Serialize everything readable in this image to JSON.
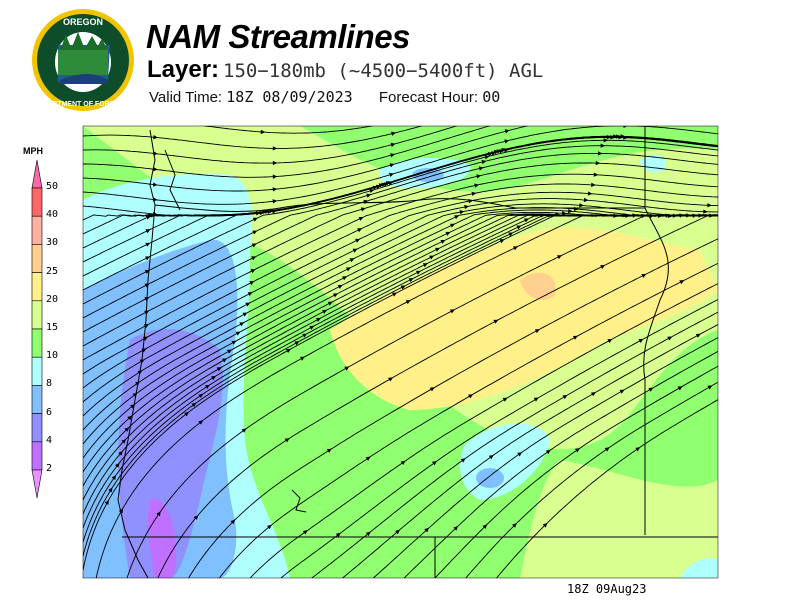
{
  "header": {
    "title": "NAM Streamlines",
    "layer_label": "Layer:",
    "layer_value": "150−180mb (~4500−5400ft) AGL",
    "valid_label": "Valid Time:",
    "valid_value": "18Z 08/09/2023",
    "forecast_label": "Forecast Hour:",
    "forecast_value": "00"
  },
  "logo": {
    "text": "OREGON DEPARTMENT OF FORESTRY",
    "colors": {
      "ring": "#f2c400",
      "field": "#0d4d2a"
    }
  },
  "legend": {
    "unit": "MPH",
    "ticks": [
      "50",
      "40",
      "30",
      "25",
      "20",
      "15",
      "10",
      "8",
      "6",
      "4",
      "2"
    ],
    "colors": [
      "#ff66a8",
      "#ff6666",
      "#ffb0a0",
      "#ffd090",
      "#fff08a",
      "#d8ff90",
      "#90ff70",
      "#b0ffff",
      "#80c0ff",
      "#9090ff",
      "#c070ff",
      "#e890ff"
    ]
  },
  "map": {
    "background": "#90ff70",
    "streamline_color": "#000000",
    "border_color": "#000000"
  },
  "footer": {
    "stamp": "18Z 09Aug23"
  }
}
